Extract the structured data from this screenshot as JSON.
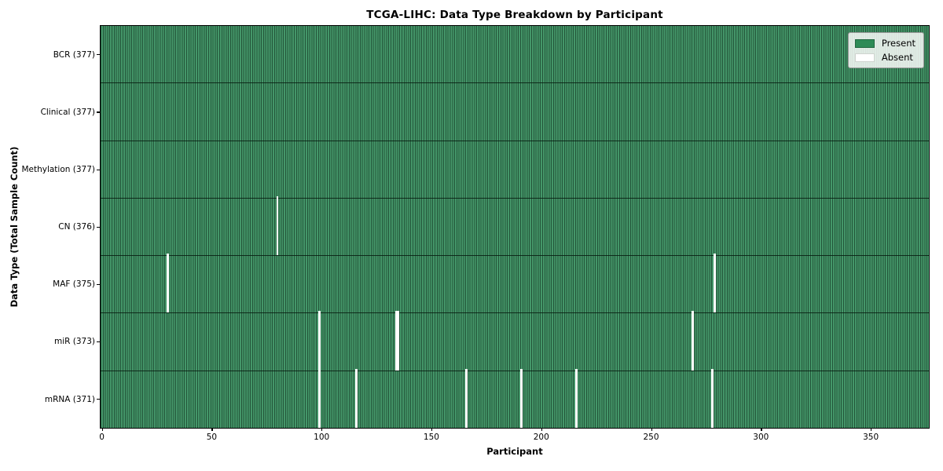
{
  "chart_data": {
    "type": "heatmap",
    "title": "TCGA-LIHC: Data Type Breakdown by Participant",
    "xlabel": "Participant",
    "ylabel": "Data Type (Total Sample Count)",
    "n_participants": 377,
    "x_ticks": [
      0,
      50,
      100,
      150,
      200,
      250,
      300,
      350
    ],
    "x_range": [
      0,
      377
    ],
    "grid": false,
    "legend_position": "upper right",
    "legend": {
      "items": [
        {
          "label": "Present",
          "color": "#2e8b57"
        },
        {
          "label": "Absent",
          "color": "#ffffff"
        }
      ]
    },
    "rows": [
      {
        "label": "BCR (377)",
        "data_type": "BCR",
        "total": 377,
        "absent_participants": []
      },
      {
        "label": "Clinical (377)",
        "data_type": "Clinical",
        "total": 377,
        "absent_participants": []
      },
      {
        "label": "Methylation (377)",
        "data_type": "Methylation",
        "total": 377,
        "absent_participants": []
      },
      {
        "label": "CN (376)",
        "data_type": "CN",
        "total": 376,
        "absent_participants": [
          80
        ]
      },
      {
        "label": "MAF (375)",
        "data_type": "MAF",
        "total": 375,
        "absent_participants": [
          30,
          279
        ]
      },
      {
        "label": "miR (373)",
        "data_type": "miR",
        "total": 373,
        "absent_participants": [
          99,
          134,
          135,
          269
        ]
      },
      {
        "label": "mRNA (371)",
        "data_type": "mRNA",
        "total": 371,
        "absent_participants": [
          99,
          116,
          166,
          191,
          216,
          278
        ]
      }
    ],
    "colors": {
      "present": "#2e8b57",
      "absent": "#ffffff",
      "row_divider": "#0e2c1b",
      "spine": "#000000",
      "legend_border": "#9a9a9a"
    }
  }
}
